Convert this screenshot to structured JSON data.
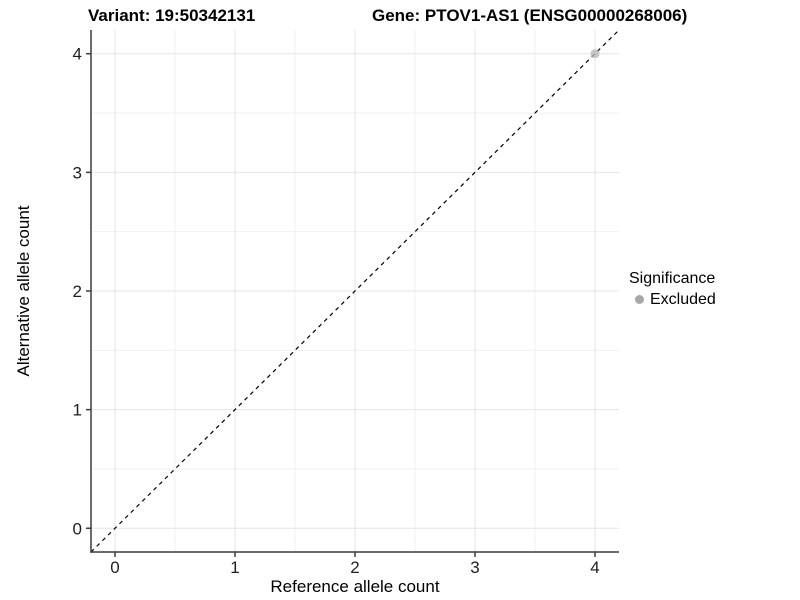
{
  "header": {
    "variant": "Variant: 19:50342131",
    "gene": "Gene: PTOV1-AS1 (ENSG00000268006)"
  },
  "chart_data": {
    "type": "scatter",
    "title": "",
    "xlabel": "Reference allele count",
    "ylabel": "Alternative allele count",
    "xlim": [
      -0.2,
      4.2
    ],
    "ylim": [
      -0.2,
      4.2
    ],
    "x_ticks": [
      0,
      1,
      2,
      3,
      4
    ],
    "y_ticks": [
      0,
      1,
      2,
      3,
      4
    ],
    "x_minor_ticks": [
      0.5,
      1.5,
      2.5,
      3.5
    ],
    "y_minor_ticks": [
      0.5,
      1.5,
      2.5,
      3.5
    ],
    "grid": true,
    "series": [
      {
        "name": "Excluded",
        "marker": "circle",
        "color": "#b8b8b8",
        "points": [
          [
            4,
            4
          ]
        ]
      }
    ],
    "identity_line": {
      "style": "dashed",
      "from": [
        -0.2,
        -0.2
      ],
      "to": [
        4.2,
        4.2
      ],
      "color": "#000000"
    },
    "legend": {
      "title": "Significance",
      "position": "right",
      "entries": [
        {
          "label": "Excluded",
          "color": "#a8a8a8",
          "marker": "circle"
        }
      ]
    }
  },
  "colors": {
    "background": "#ffffff",
    "grid_major": "#e5e5e5",
    "grid_minor": "#f1f1f1",
    "axis_line": "#3c3c3c",
    "tick_label": "#1f1f1f"
  }
}
